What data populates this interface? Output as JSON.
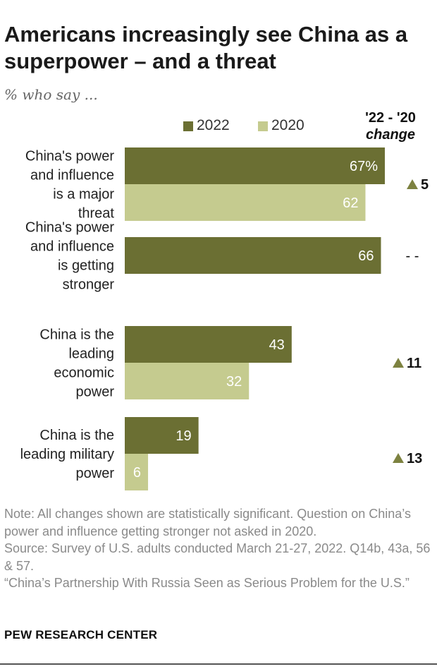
{
  "header": {
    "title": "Americans increasingly see China as a superpower – and a threat",
    "subtitle": "% who say ..."
  },
  "legend": {
    "items": [
      {
        "label": "2022",
        "color": "#6b6f33"
      },
      {
        "label": "2020",
        "color": "#c5cb8f"
      }
    ]
  },
  "change_header": {
    "line1": "'22 - '20",
    "line2": "change"
  },
  "chart_data": {
    "type": "bar",
    "orientation": "horizontal",
    "title": "Americans increasingly see China as a superpower – and a threat",
    "subtitle": "% who say ...",
    "categories": [
      [
        "China's power",
        "and influence",
        "is a major",
        "threat"
      ],
      [
        "China's power",
        "and influence",
        "is getting",
        "stronger"
      ],
      [
        "China is the",
        "leading",
        "economic",
        "power"
      ],
      [
        "China is the",
        "leading military",
        "power"
      ]
    ],
    "series": [
      {
        "name": "2022",
        "color": "#6b6f33",
        "values": [
          67,
          66,
          43,
          19
        ],
        "labels": [
          "67%",
          "66",
          "43",
          "19"
        ]
      },
      {
        "name": "2020",
        "color": "#c5cb8f",
        "values": [
          62,
          null,
          32,
          6
        ],
        "labels": [
          "62",
          "",
          "32",
          "6"
        ]
      }
    ],
    "change": [
      "5",
      "- -",
      "11",
      "13"
    ],
    "change_marker_color": "#7d8240",
    "xlim": [
      0,
      100
    ],
    "xlabel": "",
    "ylabel": ""
  },
  "notes": {
    "note": "Note: All changes shown are statistically significant. Question on China’s power and influence getting stronger not asked in 2020.",
    "source": "Source: Survey of U.S. adults conducted March 21-27, 2022. Q14b, 43a, 56 & 57.",
    "report": "“China’s Partnership With Russia Seen as Serious Problem for the U.S.”"
  },
  "footer": {
    "brand": "PEW RESEARCH CENTER"
  }
}
